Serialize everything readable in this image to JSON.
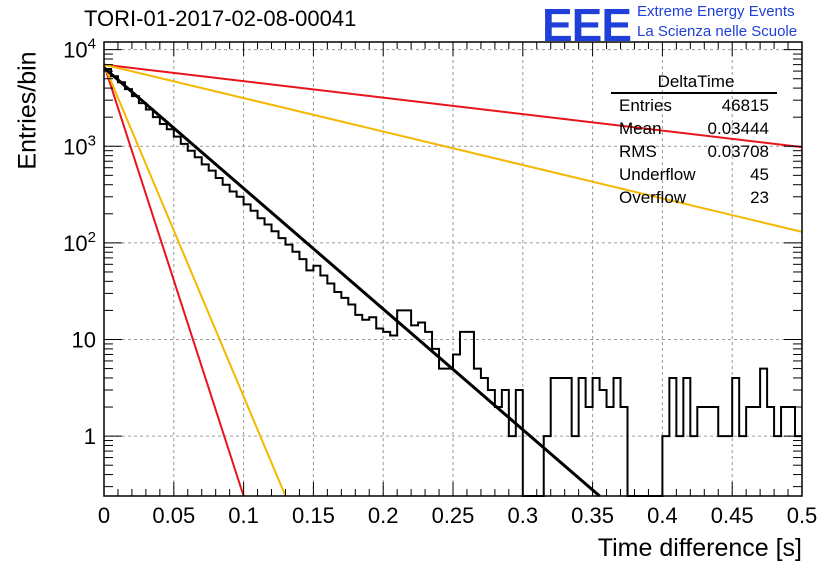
{
  "header": {
    "title": "TORI-01-2017-02-08-00041",
    "logo_mark": "EEE",
    "logo_line1": "Extreme Energy Events",
    "logo_line2": "La Scienza nelle Scuole"
  },
  "stats": {
    "title": "DeltaTime",
    "rows": [
      {
        "label": "Entries",
        "value": "46815"
      },
      {
        "label": "Mean",
        "value": "0.03444"
      },
      {
        "label": "RMS",
        "value": "0.03708"
      },
      {
        "label": "Underflow",
        "value": "45"
      },
      {
        "label": "Overflow",
        "value": "23"
      }
    ]
  },
  "colors": {
    "histogram": "#000000",
    "fit": "#000000",
    "red_lines": "#e8141c",
    "orange_lines": "#f5b800",
    "grid": "#9a9a9a",
    "logo": "#1f3fd8"
  },
  "chart_data": {
    "type": "histogram",
    "xlabel": "Time difference [s]",
    "ylabel": "Entries/bin",
    "xlim": [
      0,
      0.5
    ],
    "ylim": [
      0.24,
      12000
    ],
    "yscale": "log",
    "grid": true,
    "x_ticks": [
      "0",
      "0.05",
      "0.1",
      "0.15",
      "0.2",
      "0.25",
      "0.3",
      "0.35",
      "0.4",
      "0.45",
      "0.5"
    ],
    "y_ticks": [
      "1",
      "10",
      "10^2",
      "10^3",
      "10^4"
    ],
    "bin_width": 0.005,
    "histogram": [
      6300,
      5300,
      4600,
      3900,
      3300,
      2800,
      2400,
      2000,
      1700,
      1500,
      1260,
      1060,
      900,
      770,
      650,
      560,
      470,
      400,
      340,
      300,
      250,
      215,
      180,
      155,
      132,
      112,
      96,
      81,
      68,
      52,
      58,
      46,
      38,
      31,
      27,
      23,
      18,
      16,
      17,
      13,
      12,
      11,
      20,
      20,
      14,
      15,
      12,
      8,
      5,
      5,
      7,
      12,
      12,
      5,
      4,
      3,
      2,
      3,
      1,
      3,
      0,
      0,
      0,
      1,
      4,
      4,
      4,
      1,
      4,
      2,
      4,
      3,
      2,
      4,
      2,
      0,
      0,
      0,
      0,
      0,
      1,
      4,
      1,
      4,
      1,
      2,
      2,
      2,
      1,
      1,
      4,
      1,
      2,
      2,
      5,
      2,
      1,
      2,
      2,
      1
    ],
    "series": [
      {
        "kind": "fit",
        "color": "black",
        "x": [
          0.0,
          0.355
        ],
        "y": [
          6500,
          0.24
        ]
      },
      {
        "kind": "line",
        "color": "red",
        "x": [
          0.0,
          0.5
        ],
        "y": [
          7000,
          980
        ]
      },
      {
        "kind": "line",
        "color": "red",
        "x": [
          0.0,
          0.1
        ],
        "y": [
          7000,
          0.24
        ]
      },
      {
        "kind": "line",
        "color": "orange",
        "x": [
          0.0,
          0.5
        ],
        "y": [
          7000,
          130
        ]
      },
      {
        "kind": "line",
        "color": "orange",
        "x": [
          0.0,
          0.13
        ],
        "y": [
          7000,
          0.24
        ]
      }
    ]
  }
}
